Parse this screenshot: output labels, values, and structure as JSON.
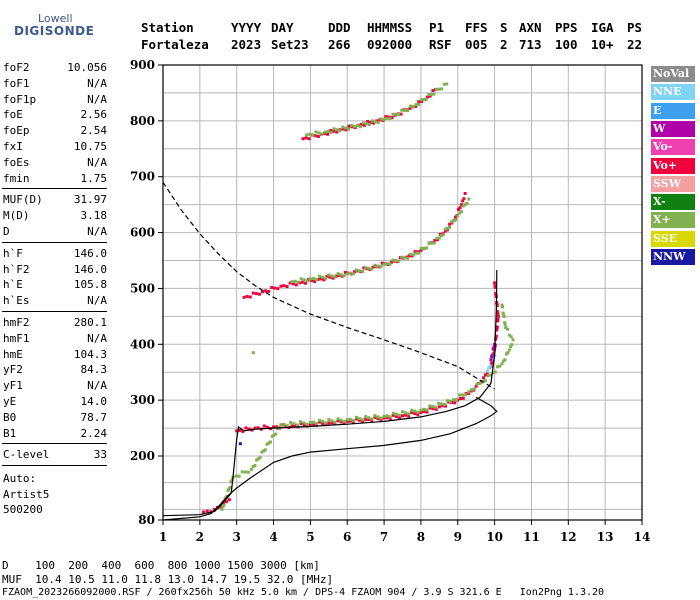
{
  "logo": {
    "line1": "Lowell",
    "line2": "DIGISONDE"
  },
  "header": {
    "labels": [
      "Station",
      "YYYY",
      "DAY",
      "DDD",
      "HHMMSS",
      "P1",
      "FFS",
      "S",
      "AXN",
      "PPS",
      "IGA",
      "PS"
    ],
    "values": [
      "Fortaleza",
      "2023",
      "Set23",
      "266",
      "092000",
      "RSF",
      "005",
      "2",
      "713",
      "100",
      "10+",
      "22"
    ]
  },
  "params": {
    "group1": [
      {
        "name": "foF2",
        "value": "10.056"
      },
      {
        "name": "foF1",
        "value": "N/A"
      },
      {
        "name": "foF1p",
        "value": "N/A"
      },
      {
        "name": "foE",
        "value": "2.56"
      },
      {
        "name": "foEp",
        "value": "2.54"
      },
      {
        "name": "fxI",
        "value": "10.75"
      },
      {
        "name": "foEs",
        "value": "N/A"
      },
      {
        "name": "fmin",
        "value": "1.75"
      }
    ],
    "group2": [
      {
        "name": "MUF(D)",
        "value": "31.97"
      },
      {
        "name": "M(D)",
        "value": "3.18"
      },
      {
        "name": "D",
        "value": "N/A"
      }
    ],
    "group3": [
      {
        "name": "h`F",
        "value": "146.0"
      },
      {
        "name": "h`F2",
        "value": "146.0"
      },
      {
        "name": "h`E",
        "value": "105.8"
      },
      {
        "name": "h`Es",
        "value": "N/A"
      }
    ],
    "group4": [
      {
        "name": "hmF2",
        "value": "280.1"
      },
      {
        "name": "hmF1",
        "value": "N/A"
      },
      {
        "name": "hmE",
        "value": "104.3"
      },
      {
        "name": "yF2",
        "value": "84.3"
      },
      {
        "name": "yF1",
        "value": "N/A"
      },
      {
        "name": "yE",
        "value": "14.0"
      },
      {
        "name": "B0",
        "value": "78.7"
      },
      {
        "name": "B1",
        "value": "2.24"
      }
    ],
    "group5": [
      {
        "name": "C-level",
        "value": "33"
      }
    ],
    "auto": [
      "Auto:",
      "Artist5",
      "500200"
    ]
  },
  "legend": [
    {
      "label": "NoVal",
      "color": "#8c8c8c"
    },
    {
      "label": "NNE",
      "color": "#7fd4f5"
    },
    {
      "label": "E",
      "color": "#3fa0f0"
    },
    {
      "label": "W",
      "color": "#b000a8"
    },
    {
      "label": "Vo-",
      "color": "#f040b0"
    },
    {
      "label": "Vo+",
      "color": "#f0003c"
    },
    {
      "label": "SSW",
      "color": "#f4a0a0"
    },
    {
      "label": "X-",
      "color": "#108010"
    },
    {
      "label": "X+",
      "color": "#80b050"
    },
    {
      "label": "SSE",
      "color": "#d8d800"
    },
    {
      "label": "NNW",
      "color": "#1818a0"
    }
  ],
  "footer": {
    "line1": "D    100  200  400  600  800 1000 1500 3000 [km]",
    "line2": "MUF  10.4 10.5 11.0 11.8 13.0 14.7 19.5 32.0 [MHz]",
    "line3": "FZAOM_2023266092000.RSF / 260fx256h 50 kHz 5.0 km / DPS-4 FZAOM 904 / 3.9 S 321.6 E   Ion2Png 1.3.20"
  },
  "chart_data": {
    "type": "scatter",
    "x_ticks": [
      "1",
      "2",
      "3",
      "4",
      "5",
      "6",
      "7",
      "8",
      "9",
      "10",
      "11",
      "12",
      "13",
      "14"
    ],
    "y_ticks": [
      "80",
      "200",
      "300",
      "400",
      "500",
      "600",
      "700",
      "800",
      "900"
    ],
    "xlim": [
      1,
      14
    ],
    "ylim": [
      80,
      900
    ],
    "grid": true,
    "legend_position": "right",
    "series": [
      {
        "name": "Vo+",
        "color": "#f0003c",
        "points": [
          [
            2.1,
            95
          ],
          [
            2.4,
            100
          ],
          [
            2.8,
            118
          ],
          [
            3.0,
            245
          ],
          [
            3.5,
            250
          ],
          [
            4.0,
            252
          ],
          [
            4.5,
            254
          ],
          [
            5,
            257
          ],
          [
            5.5,
            259
          ],
          [
            6,
            262
          ],
          [
            6.5,
            265
          ],
          [
            7,
            268
          ],
          [
            7.5,
            272
          ],
          [
            8,
            278
          ],
          [
            8.5,
            288
          ],
          [
            9,
            300
          ],
          [
            9.3,
            312
          ],
          [
            9.5,
            325
          ],
          [
            9.7,
            340
          ],
          [
            9.9,
            360
          ],
          [
            10.0,
            390
          ],
          [
            10.1,
            450
          ],
          [
            10.0,
            510
          ],
          [
            3.2,
            484
          ],
          [
            3.7,
            494
          ],
          [
            4.2,
            504
          ],
          [
            4.7,
            510
          ],
          [
            5.2,
            516
          ],
          [
            5.7,
            522
          ],
          [
            6.2,
            530
          ],
          [
            6.7,
            538
          ],
          [
            7.2,
            547
          ],
          [
            7.6,
            556
          ],
          [
            8,
            568
          ],
          [
            8.3,
            582
          ],
          [
            8.6,
            598
          ],
          [
            8.9,
            622
          ],
          [
            9.1,
            650
          ],
          [
            9.2,
            670
          ],
          [
            4.8,
            768
          ],
          [
            5.3,
            776
          ],
          [
            5.8,
            784
          ],
          [
            6.3,
            792
          ],
          [
            6.8,
            800
          ],
          [
            7.3,
            810
          ],
          [
            7.7,
            822
          ],
          [
            8.1,
            838
          ],
          [
            8.4,
            856
          ]
        ]
      },
      {
        "name": "X+",
        "color": "#80b050",
        "points": [
          [
            2.6,
            100
          ],
          [
            2.9,
            160
          ],
          [
            3.4,
            175
          ],
          [
            4.2,
            256
          ],
          [
            5.0,
            260
          ],
          [
            6.0,
            265
          ],
          [
            7.0,
            271
          ],
          [
            8.0,
            282
          ],
          [
            8.8,
            298
          ],
          [
            9.3,
            315
          ],
          [
            9.6,
            330
          ],
          [
            9.9,
            345
          ],
          [
            10.2,
            365
          ],
          [
            10.4,
            390
          ],
          [
            10.5,
            408
          ],
          [
            10.3,
            430
          ],
          [
            10.2,
            470
          ],
          [
            4.5,
            512
          ],
          [
            5.0,
            517
          ],
          [
            6.0,
            526
          ],
          [
            7.0,
            543
          ],
          [
            7.8,
            560
          ],
          [
            8.5,
            590
          ],
          [
            9.0,
            630
          ],
          [
            9.3,
            660
          ],
          [
            4.9,
            775
          ],
          [
            5.4,
            780
          ],
          [
            6.2,
            790
          ],
          [
            7.0,
            802
          ],
          [
            7.8,
            826
          ],
          [
            8.7,
            866
          ],
          [
            3.45,
            385
          ]
        ]
      },
      {
        "name": "NNE",
        "color": "#7fd4f5",
        "points": [
          [
            9.8,
            352
          ],
          [
            10.0,
            380
          ]
        ]
      },
      {
        "name": "W",
        "color": "#b000a8",
        "points": [
          [
            9.9,
            372
          ],
          [
            10.0,
            400
          ]
        ]
      },
      {
        "name": "NNW",
        "color": "#1818a0",
        "points": [
          [
            3.1,
            222
          ]
        ]
      }
    ],
    "lines": [
      {
        "name": "trace",
        "style": "solid",
        "color": "#000000",
        "points": [
          [
            1.0,
            88
          ],
          [
            2.0,
            90
          ],
          [
            2.4,
            96
          ],
          [
            2.6,
            110
          ],
          [
            2.85,
            130
          ],
          [
            2.9,
            160
          ],
          [
            3.0,
            230
          ],
          [
            3.05,
            252
          ],
          [
            3.2,
            245
          ],
          [
            3.5,
            248
          ],
          [
            4,
            250
          ],
          [
            5,
            253
          ],
          [
            6,
            257
          ],
          [
            7,
            262
          ],
          [
            8,
            270
          ],
          [
            8.7,
            280
          ],
          [
            9.2,
            290
          ],
          [
            9.6,
            305
          ],
          [
            9.9,
            330
          ],
          [
            10.0,
            380
          ],
          [
            10.05,
            470
          ],
          [
            10.06,
            533
          ]
        ]
      },
      {
        "name": "profile",
        "style": "solid",
        "color": "#000000",
        "points": [
          [
            1.0,
            80
          ],
          [
            2.0,
            86
          ],
          [
            2.3,
            92
          ],
          [
            2.5,
            105
          ],
          [
            2.8,
            128
          ],
          [
            3.0,
            140
          ],
          [
            3.4,
            160
          ],
          [
            4.0,
            188
          ],
          [
            4.5,
            200
          ],
          [
            5.0,
            207
          ],
          [
            6.0,
            213
          ],
          [
            7.0,
            219
          ],
          [
            8.0,
            228
          ],
          [
            8.8,
            240
          ],
          [
            9.5,
            258
          ],
          [
            9.9,
            272
          ],
          [
            10.06,
            280
          ],
          [
            9.9,
            290
          ],
          [
            9.5,
            305
          ]
        ]
      },
      {
        "name": "muf",
        "style": "dashed",
        "color": "#000000",
        "points": [
          [
            1.0,
            690
          ],
          [
            1.5,
            640
          ],
          [
            2.0,
            598
          ],
          [
            2.5,
            562
          ],
          [
            3.0,
            530
          ],
          [
            3.5,
            505
          ],
          [
            4.0,
            484
          ],
          [
            5.0,
            454
          ],
          [
            6.0,
            430
          ],
          [
            7.0,
            408
          ],
          [
            8.0,
            385
          ],
          [
            9.0,
            360
          ],
          [
            9.8,
            328
          ],
          [
            10.0,
            320
          ]
        ]
      }
    ]
  }
}
